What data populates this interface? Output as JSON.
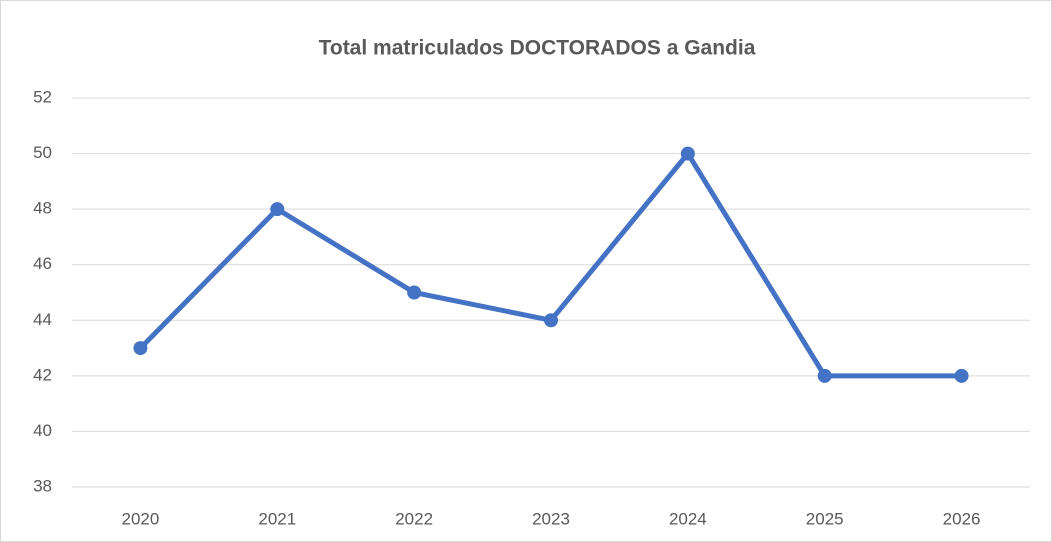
{
  "chart_data": {
    "type": "line",
    "title": "Total matriculados DOCTORADOS a Gandia",
    "categories": [
      "2020",
      "2021",
      "2022",
      "2023",
      "2024",
      "2025",
      "2026"
    ],
    "series": [
      {
        "name": "Total",
        "color": "#4472c4",
        "values": [
          43,
          48,
          45,
          44,
          50,
          42,
          42
        ]
      }
    ],
    "ylim": [
      38,
      52
    ],
    "yticks": [
      38,
      40,
      42,
      44,
      46,
      48,
      50,
      52
    ],
    "grid": true
  }
}
